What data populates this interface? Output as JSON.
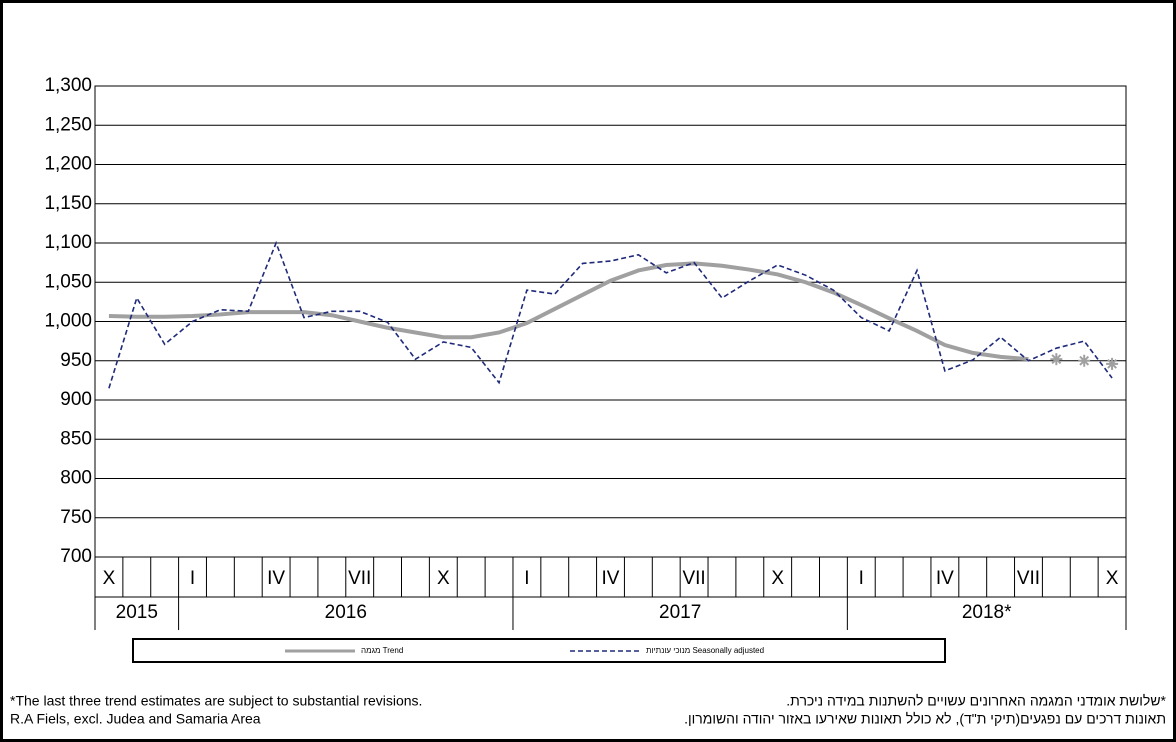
{
  "chart_data": {
    "type": "line",
    "categories": [
      "X",
      null,
      null,
      "I",
      null,
      null,
      "IV",
      null,
      null,
      "VII",
      null,
      null,
      "X",
      null,
      null,
      "I",
      null,
      null,
      "IV",
      null,
      null,
      "VII",
      null,
      null,
      "X",
      null,
      null,
      "I",
      null,
      null,
      "IV",
      null,
      null,
      "VII",
      null,
      null,
      "X"
    ],
    "x_groups": [
      {
        "label": "2015",
        "span": 3
      },
      {
        "label": "2016",
        "span": 12
      },
      {
        "label": "2017",
        "span": 12
      },
      {
        "label": "2018*",
        "span": 10
      }
    ],
    "series": [
      {
        "name": "מגמה Trend",
        "color": "#a0a0a0",
        "style": "solid",
        "values": [
          1007,
          1006,
          1006,
          1007,
          1009,
          1012,
          1012,
          1012,
          1008,
          1000,
          992,
          986,
          980,
          980,
          986,
          998,
          1016,
          1034,
          1052,
          1065,
          1072,
          1074,
          1071,
          1066,
          1060,
          1050,
          1037,
          1021,
          1004,
          988,
          970,
          960,
          955,
          952,
          null,
          null,
          null
        ]
      },
      {
        "name": "מנוכי עונתיות Seasonally adjusted",
        "color": "#1f2a7a",
        "style": "dashed",
        "values": [
          915,
          1030,
          971,
          1000,
          1015,
          1013,
          1100,
          1005,
          1013,
          1013,
          999,
          952,
          974,
          967,
          922,
          1040,
          1035,
          1074,
          1077,
          1085,
          1062,
          1075,
          1030,
          1052,
          1072,
          1059,
          1040,
          1005,
          988,
          1065,
          937,
          951,
          980,
          950,
          966,
          975,
          928
        ]
      },
      {
        "color": "#a0a0a0",
        "style": "asterisk",
        "values": [
          null,
          null,
          null,
          null,
          null,
          null,
          null,
          null,
          null,
          null,
          null,
          null,
          null,
          null,
          null,
          null,
          null,
          null,
          null,
          null,
          null,
          null,
          null,
          null,
          null,
          null,
          null,
          null,
          null,
          null,
          null,
          null,
          null,
          null,
          952,
          950,
          946
        ]
      }
    ],
    "ylim": [
      700,
      1300
    ],
    "yticks": [
      700,
      750,
      800,
      850,
      900,
      950,
      {
        "value": 1000,
        "label": "1,000"
      },
      {
        "value": 1050,
        "label": "1,050"
      },
      {
        "value": 1100,
        "label": "1,100"
      },
      {
        "value": 1150,
        "label": "1,150"
      },
      {
        "value": 1200,
        "label": "1,200"
      },
      {
        "value": 1250,
        "label": "1,250"
      },
      {
        "value": 1300,
        "label": "1,300"
      }
    ],
    "grid": true,
    "notes": {
      "en": [
        "*The last three trend estimates are subject to substantial revisions.",
        "R.A Fiels, excl. Judea and Samaria Area"
      ],
      "he": [
        "*שלושת אומדני המגמה האחרונים עשויים להשתנות במידה ניכרת.",
        "תאונות דרכים עם נפגעים(תיקי ת\"ד), לא כולל תאונות שאירעו באזור יהודה והשומרון."
      ]
    }
  }
}
